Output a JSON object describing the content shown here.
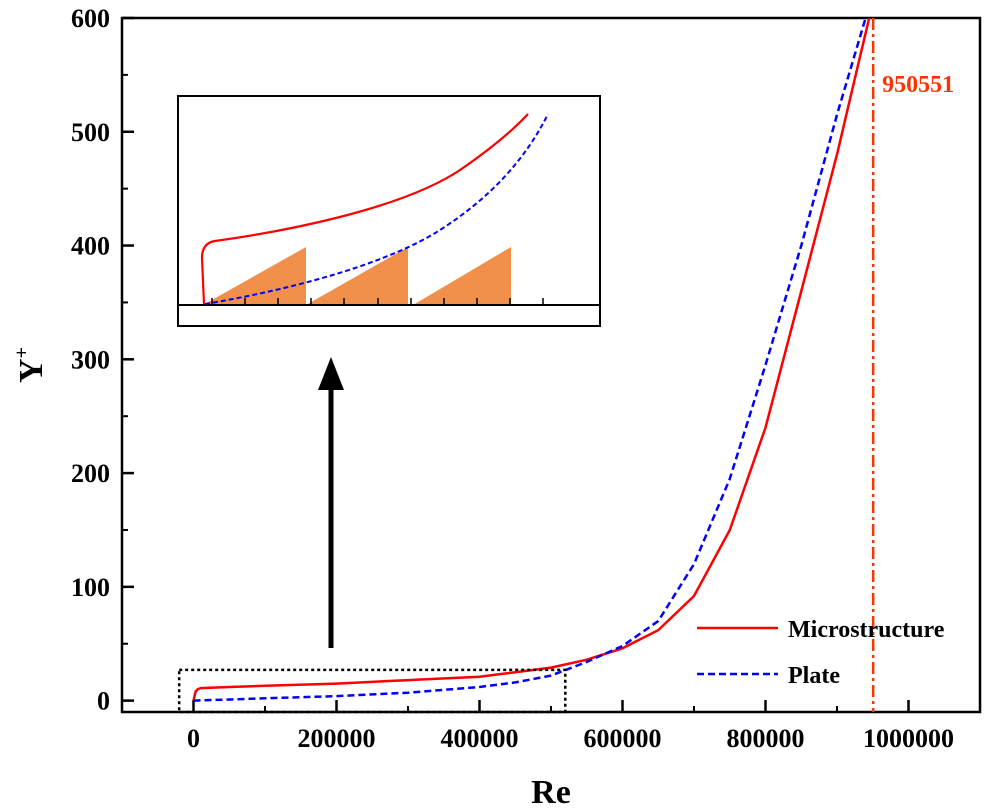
{
  "chart_data": {
    "type": "line",
    "xlabel": "Re",
    "ylabel_main": "Y",
    "ylabel_sup": "+",
    "xlim": [
      -100000,
      1100000
    ],
    "ylim": [
      -10,
      600
    ],
    "xticks": [
      0,
      200000,
      400000,
      600000,
      800000,
      1000000
    ],
    "xtick_labels": [
      "0",
      "200000",
      "400000",
      "600000",
      "800000",
      "1000000"
    ],
    "yticks": [
      0,
      100,
      200,
      300,
      400,
      500,
      600
    ],
    "ytick_labels": [
      "0",
      "100",
      "200",
      "300",
      "400",
      "500",
      "600"
    ],
    "grid": false,
    "legend_position": "bottom-right",
    "series": [
      {
        "name": "Microstructure",
        "color": "#ff0000",
        "style": "solid",
        "x": [
          0,
          3000,
          6000,
          10000,
          50000,
          100000,
          200000,
          300000,
          400000,
          450000,
          500000,
          550000,
          600000,
          650000,
          700000,
          750000,
          800000,
          850000,
          900000,
          930000,
          945000
        ],
        "y": [
          0,
          8,
          10,
          11,
          12,
          13,
          15,
          18,
          21,
          25,
          29,
          36,
          46,
          62,
          92,
          150,
          240,
          360,
          480,
          560,
          600
        ]
      },
      {
        "name": "Plate",
        "color": "#0000ff",
        "style": "dashed",
        "x": [
          0,
          50000,
          100000,
          200000,
          300000,
          400000,
          450000,
          500000,
          550000,
          600000,
          650000,
          700000,
          750000,
          800000,
          850000,
          900000,
          940000
        ],
        "y": [
          0,
          1,
          2,
          4,
          7,
          12,
          16,
          22,
          34,
          48,
          70,
          120,
          195,
          295,
          400,
          515,
          600
        ]
      }
    ],
    "annotations": [
      {
        "type": "vline",
        "x": 950551,
        "label": "950551",
        "color": "#ff3300"
      }
    ],
    "zoom_box": {
      "x": [
        -20000,
        520000
      ],
      "y": [
        -10,
        27
      ]
    },
    "inset": {
      "series_colors": [
        "#ff0000",
        "#0000ff"
      ],
      "fill_color": "#f0904a"
    }
  }
}
